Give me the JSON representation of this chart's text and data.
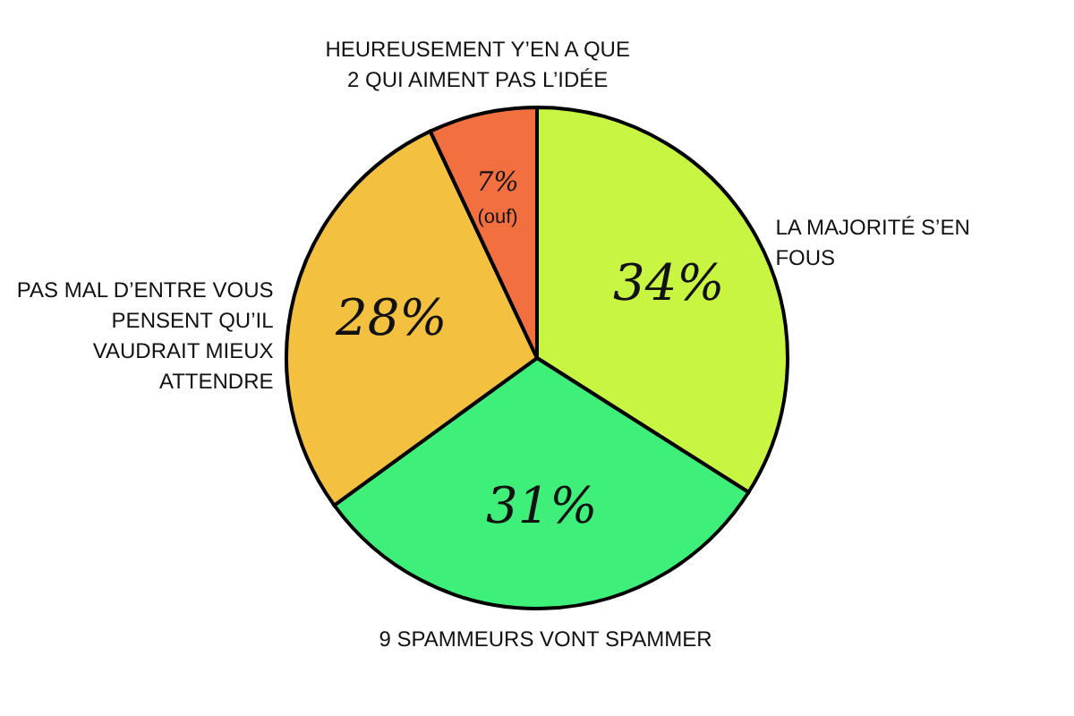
{
  "chart_data": {
    "type": "pie",
    "categories": [
      "LA MAJORITÉ S’EN FOUS",
      "9 SPAMMEURS VONT SPAMMER",
      "PAS MAL D’ENTRE VOUS PENSENT QU’IL VAUDRAIT MIEUX ATTENDRE",
      "HEUREUSEMENT Y’EN A QUE 2 QUI AIMENT PAS L’IDÉE"
    ],
    "values": [
      34,
      31,
      28,
      7
    ],
    "colors": [
      "#c8f542",
      "#3ef07a",
      "#f3c03f",
      "#f2703f"
    ],
    "value_labels": [
      "34%",
      "31%",
      "28%",
      "7%"
    ],
    "annotations": [
      "(ouf)"
    ]
  }
}
